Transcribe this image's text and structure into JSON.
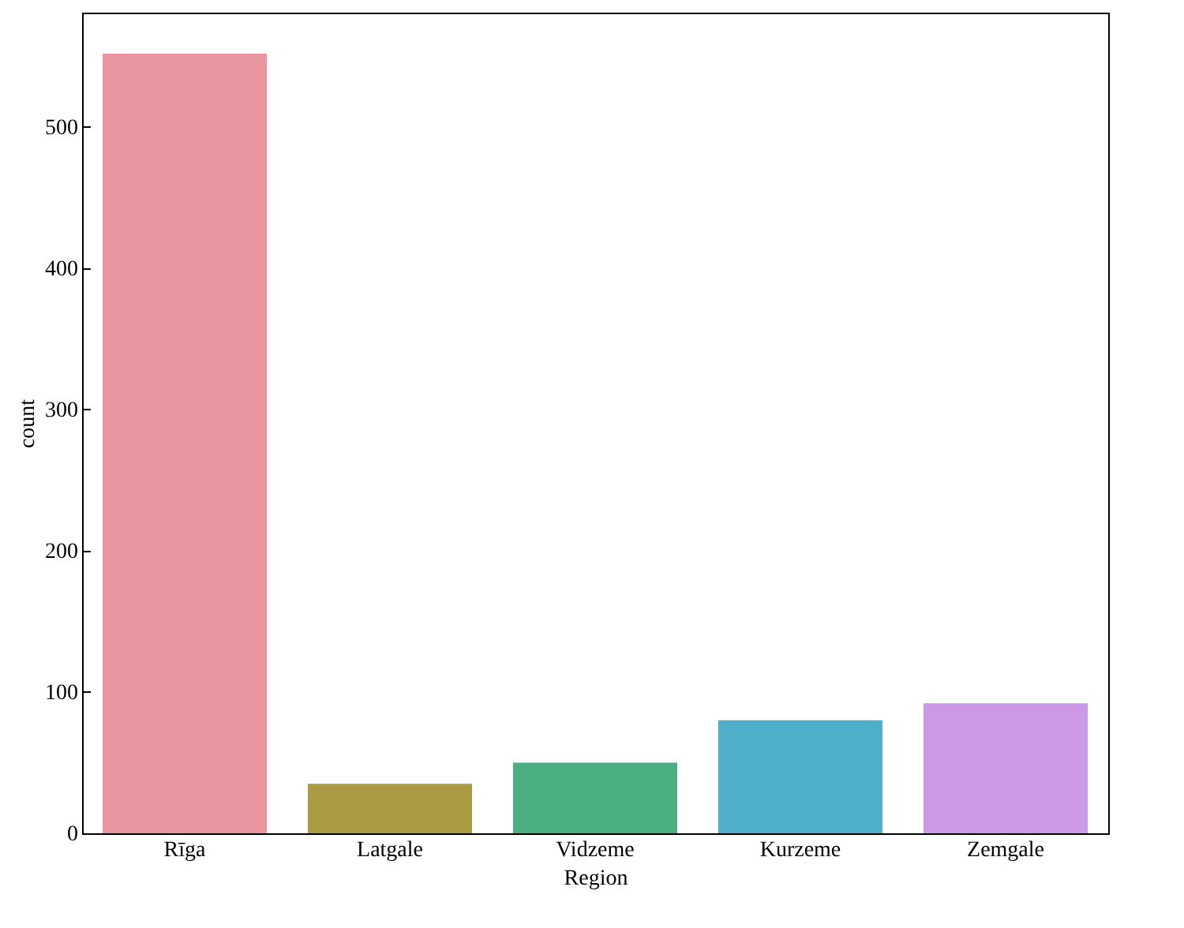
{
  "chart_data": {
    "type": "bar",
    "xlabel": "Region",
    "ylabel": "count",
    "categories": [
      "Rīga",
      "Latgale",
      "Vidzeme",
      "Kurzeme",
      "Zemgale"
    ],
    "values": [
      552,
      35,
      50,
      80,
      92
    ],
    "colors": [
      "#e8959f",
      "#a99a43",
      "#4aae81",
      "#4faec8",
      "#cd99e6"
    ],
    "ylim": [
      0,
      581
    ],
    "yticks": [
      0,
      100,
      200,
      300,
      400,
      500
    ],
    "grid": false
  }
}
